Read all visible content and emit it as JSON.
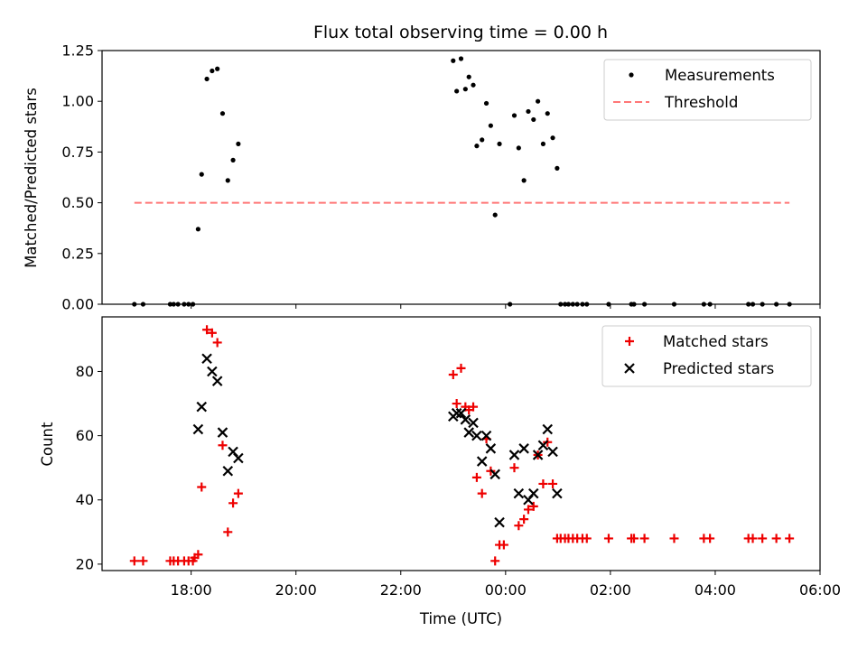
{
  "title": "Flux total observing time = 0.00 h",
  "colors": {
    "measurement": "#000000",
    "threshold": "#ff7777",
    "matched": "#ee0000",
    "predicted": "#000000"
  },
  "chart_data": [
    {
      "type": "scatter",
      "ylabel": "Matched/Predicted stars",
      "ylim": [
        0,
        1.25
      ],
      "yticks": [
        "0.00",
        "0.25",
        "0.50",
        "0.75",
        "1.00",
        "1.25"
      ],
      "legend_position": "top-right",
      "legend": [
        "Measurements",
        "Threshold"
      ],
      "threshold": {
        "name": "Threshold",
        "value": 0.5,
        "x_start": "16:55",
        "x_end": "05:25",
        "style": "dashed"
      },
      "series": [
        {
          "name": "Measurements",
          "marker": "dot",
          "points": [
            [
              "16:55",
              0.0
            ],
            [
              "17:05",
              0.0
            ],
            [
              "17:36",
              0.0
            ],
            [
              "17:40",
              0.0
            ],
            [
              "17:45",
              0.0
            ],
            [
              "17:52",
              0.0
            ],
            [
              "17:57",
              0.0
            ],
            [
              "18:02",
              0.0
            ],
            [
              "18:08",
              0.37
            ],
            [
              "18:12",
              0.64
            ],
            [
              "18:18",
              1.11
            ],
            [
              "18:24",
              1.15
            ],
            [
              "18:30",
              1.16
            ],
            [
              "18:36",
              0.94
            ],
            [
              "18:42",
              0.61
            ],
            [
              "18:48",
              0.71
            ],
            [
              "18:54",
              0.79
            ],
            [
              "23:00",
              1.2
            ],
            [
              "23:04",
              1.05
            ],
            [
              "23:09",
              1.21
            ],
            [
              "23:14",
              1.06
            ],
            [
              "23:18",
              1.12
            ],
            [
              "23:23",
              1.08
            ],
            [
              "23:27",
              0.78
            ],
            [
              "23:33",
              0.81
            ],
            [
              "23:38",
              0.99
            ],
            [
              "23:43",
              0.88
            ],
            [
              "23:48",
              0.44
            ],
            [
              "23:53",
              0.79
            ],
            [
              "00:05",
              0.0
            ],
            [
              "00:10",
              0.93
            ],
            [
              "00:15",
              0.77
            ],
            [
              "00:21",
              0.61
            ],
            [
              "00:26",
              0.95
            ],
            [
              "00:32",
              0.91
            ],
            [
              "00:37",
              1.0
            ],
            [
              "00:43",
              0.79
            ],
            [
              "00:48",
              0.94
            ],
            [
              "00:54",
              0.82
            ],
            [
              "00:59",
              0.67
            ],
            [
              "01:03",
              0.0
            ],
            [
              "01:08",
              0.0
            ],
            [
              "01:12",
              0.0
            ],
            [
              "01:17",
              0.0
            ],
            [
              "01:22",
              0.0
            ],
            [
              "01:28",
              0.0
            ],
            [
              "01:33",
              0.0
            ],
            [
              "01:58",
              0.0
            ],
            [
              "02:24",
              0.0
            ],
            [
              "02:27",
              0.0
            ],
            [
              "02:39",
              0.0
            ],
            [
              "03:13",
              0.0
            ],
            [
              "03:47",
              0.0
            ],
            [
              "03:54",
              0.0
            ],
            [
              "04:38",
              0.0
            ],
            [
              "04:43",
              0.0
            ],
            [
              "04:54",
              0.0
            ],
            [
              "05:10",
              0.0
            ],
            [
              "05:25",
              0.0
            ]
          ]
        }
      ]
    },
    {
      "type": "scatter",
      "xlabel": "Time (UTC)",
      "ylabel": "Count",
      "ylim": [
        18,
        97
      ],
      "yticks": [
        "20",
        "40",
        "60",
        "80"
      ],
      "xticks": [
        "18:00",
        "20:00",
        "22:00",
        "00:00",
        "02:00",
        "04:00",
        "06:00"
      ],
      "legend_position": "top-right",
      "legend": [
        "Matched stars",
        "Predicted stars"
      ],
      "series": [
        {
          "name": "Matched stars",
          "marker": "plus",
          "points": [
            [
              "16:55",
              21
            ],
            [
              "17:05",
              21
            ],
            [
              "17:36",
              21
            ],
            [
              "17:40",
              21
            ],
            [
              "17:45",
              21
            ],
            [
              "17:52",
              21
            ],
            [
              "17:57",
              21
            ],
            [
              "18:02",
              21
            ],
            [
              "18:04",
              22
            ],
            [
              "18:08",
              23
            ],
            [
              "18:12",
              44
            ],
            [
              "18:18",
              93
            ],
            [
              "18:24",
              92
            ],
            [
              "18:30",
              89
            ],
            [
              "18:36",
              57
            ],
            [
              "18:42",
              30
            ],
            [
              "18:48",
              39
            ],
            [
              "18:54",
              42
            ],
            [
              "23:00",
              79
            ],
            [
              "23:04",
              70
            ],
            [
              "23:09",
              81
            ],
            [
              "23:14",
              69
            ],
            [
              "23:18",
              68
            ],
            [
              "23:23",
              69
            ],
            [
              "23:27",
              47
            ],
            [
              "23:33",
              42
            ],
            [
              "23:38",
              59
            ],
            [
              "23:43",
              49
            ],
            [
              "23:48",
              21
            ],
            [
              "23:53",
              26
            ],
            [
              "23:58",
              26
            ],
            [
              "00:10",
              50
            ],
            [
              "00:15",
              32
            ],
            [
              "00:21",
              34
            ],
            [
              "00:26",
              37
            ],
            [
              "00:32",
              38
            ],
            [
              "00:37",
              54
            ],
            [
              "00:43",
              45
            ],
            [
              "00:48",
              58
            ],
            [
              "00:54",
              45
            ],
            [
              "00:59",
              28
            ],
            [
              "01:03",
              28
            ],
            [
              "01:08",
              28
            ],
            [
              "01:12",
              28
            ],
            [
              "01:17",
              28
            ],
            [
              "01:22",
              28
            ],
            [
              "01:28",
              28
            ],
            [
              "01:33",
              28
            ],
            [
              "01:58",
              28
            ],
            [
              "02:24",
              28
            ],
            [
              "02:27",
              28
            ],
            [
              "02:39",
              28
            ],
            [
              "03:13",
              28
            ],
            [
              "03:47",
              28
            ],
            [
              "03:54",
              28
            ],
            [
              "04:38",
              28
            ],
            [
              "04:43",
              28
            ],
            [
              "04:54",
              28
            ],
            [
              "05:10",
              28
            ],
            [
              "05:25",
              28
            ]
          ]
        },
        {
          "name": "Predicted stars",
          "marker": "x",
          "points": [
            [
              "18:08",
              62
            ],
            [
              "18:12",
              69
            ],
            [
              "18:18",
              84
            ],
            [
              "18:24",
              80
            ],
            [
              "18:30",
              77
            ],
            [
              "18:36",
              61
            ],
            [
              "18:42",
              49
            ],
            [
              "18:48",
              55
            ],
            [
              "18:54",
              53
            ],
            [
              "23:00",
              66
            ],
            [
              "23:04",
              67
            ],
            [
              "23:09",
              67
            ],
            [
              "23:14",
              65
            ],
            [
              "23:18",
              61
            ],
            [
              "23:23",
              64
            ],
            [
              "23:27",
              60
            ],
            [
              "23:33",
              52
            ],
            [
              "23:38",
              60
            ],
            [
              "23:43",
              56
            ],
            [
              "23:48",
              48
            ],
            [
              "23:53",
              33
            ],
            [
              "00:10",
              54
            ],
            [
              "00:15",
              42
            ],
            [
              "00:21",
              56
            ],
            [
              "00:26",
              40
            ],
            [
              "00:32",
              42
            ],
            [
              "00:37",
              54
            ],
            [
              "00:43",
              57
            ],
            [
              "00:48",
              62
            ],
            [
              "00:54",
              55
            ],
            [
              "00:59",
              42
            ]
          ]
        }
      ]
    }
  ]
}
